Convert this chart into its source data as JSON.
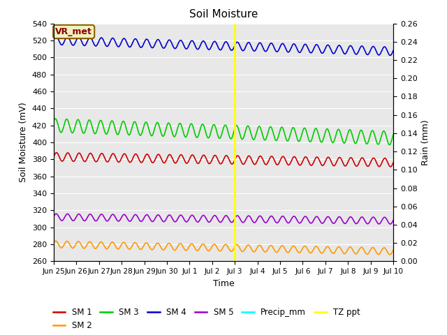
{
  "title": "Soil Moisture",
  "xlabel": "Time",
  "ylabel_left": "Soil Moisture (mV)",
  "ylabel_right": "Rain (mm)",
  "ylim_left": [
    260,
    540
  ],
  "ylim_right": [
    0.0,
    0.26
  ],
  "yticks_left": [
    260,
    280,
    300,
    320,
    340,
    360,
    380,
    400,
    420,
    440,
    460,
    480,
    500,
    520,
    540
  ],
  "yticks_right": [
    0.0,
    0.02,
    0.04,
    0.06,
    0.08,
    0.1,
    0.12,
    0.14,
    0.16,
    0.18,
    0.2,
    0.22,
    0.24,
    0.26
  ],
  "bg_color": "#e8e8e8",
  "vline_x": 8.0,
  "vline_color": "#ffff00",
  "annotation_text": "VR_met",
  "annotation_color": "#8B0000",
  "annotation_bg": "#f0f0c0",
  "annotation_border": "#8B6000",
  "series": {
    "SM1": {
      "label": "SM 1",
      "color": "#cc0000",
      "base": 383,
      "amp": 5,
      "period": 0.5,
      "phase": 0.0,
      "trend": -0.45
    },
    "SM2": {
      "label": "SM 2",
      "color": "#ff9900",
      "base": 280,
      "amp": 4,
      "period": 0.5,
      "phase": 0.4,
      "trend": -0.55
    },
    "SM3": {
      "label": "SM 3",
      "color": "#00cc00",
      "base": 420,
      "amp": 8,
      "period": 0.5,
      "phase": 0.6,
      "trend": -1.0
    },
    "SM4": {
      "label": "SM 4",
      "color": "#0000cc",
      "base": 520,
      "amp": 5,
      "period": 0.5,
      "phase": 0.2,
      "trend": -0.85
    },
    "SM5": {
      "label": "SM 5",
      "color": "#9900cc",
      "base": 312,
      "amp": 4,
      "period": 0.5,
      "phase": 0.15,
      "trend": -0.28
    }
  },
  "xtick_positions": [
    0,
    1,
    2,
    3,
    4,
    5,
    6,
    7,
    8,
    9,
    10,
    11,
    12,
    13,
    14,
    15
  ],
  "xtick_labels": [
    "Jun 25",
    "Jun 26",
    "Jun 27",
    "Jun 28",
    "Jun 29",
    "Jun 30",
    "Jul 1",
    "Jul 2",
    "Jul 3",
    "Jul 4",
    "Jul 5",
    "Jul 6",
    "Jul 7",
    "Jul 8",
    "Jul 9",
    "Jul 10"
  ],
  "legend_items": [
    {
      "label": "SM 1",
      "color": "#cc0000"
    },
    {
      "label": "SM 2",
      "color": "#ff9900"
    },
    {
      "label": "SM 3",
      "color": "#00cc00"
    },
    {
      "label": "SM 4",
      "color": "#0000cc"
    },
    {
      "label": "SM 5",
      "color": "#9900cc"
    },
    {
      "label": "Precip_mm",
      "color": "cyan"
    },
    {
      "label": "TZ ppt",
      "color": "#ffff00"
    }
  ]
}
